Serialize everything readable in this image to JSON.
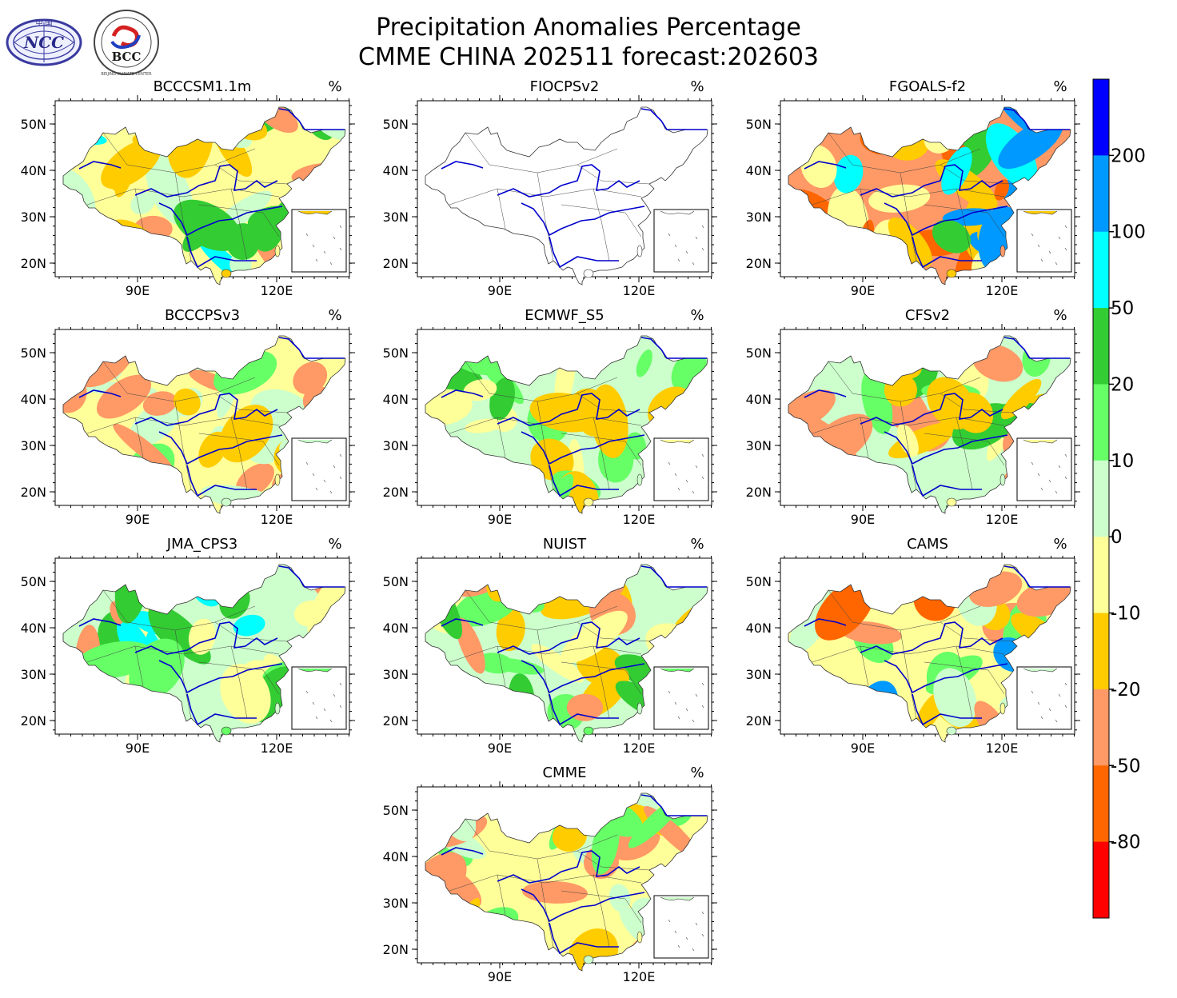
{
  "figure": {
    "title_line1": "Precipitation Anomalies Percentage",
    "title_line2": "CMME CHINA 202511 forecast:202603"
  },
  "logos": [
    {
      "name": "ncc-logo",
      "text": "NCC",
      "small_text": "中 国"
    },
    {
      "name": "bcc-logo",
      "text": "BCC",
      "small_text": "BEIJING CLIMATE CENTER"
    }
  ],
  "axes": {
    "lat_ticks": [
      "50N",
      "40N",
      "30N",
      "20N"
    ],
    "lon_ticks": [
      "90E",
      "120E"
    ]
  },
  "units": "%",
  "panels": [
    {
      "model": "BCCCSM1.1m",
      "dominant": "mixed",
      "palette": [
        "#ffff99",
        "#ffcc00",
        "#ff9966",
        "#ccffcc",
        "#33cc33",
        "#00ffff"
      ]
    },
    {
      "model": "FIOCPSv2",
      "dominant": "none",
      "palette": []
    },
    {
      "model": "FGOALS-f2",
      "dominant": "mixed",
      "palette": [
        "#ff9966",
        "#ffcc00",
        "#ffff99",
        "#33cc33",
        "#00ffff",
        "#0099ff",
        "#ff6600"
      ]
    },
    {
      "model": "BCCCPSv3",
      "dominant": "mixed",
      "palette": [
        "#ffff99",
        "#ccffcc",
        "#ffcc00",
        "#66ff66",
        "#ff9966"
      ]
    },
    {
      "model": "ECMWF_S5",
      "dominant": "wet",
      "palette": [
        "#ccffcc",
        "#ffff99",
        "#66ff66",
        "#33cc33",
        "#ffcc00"
      ]
    },
    {
      "model": "CFSv2",
      "dominant": "mixed",
      "palette": [
        "#ccffcc",
        "#ffff99",
        "#ffcc00",
        "#66ff66",
        "#ff9966",
        "#33cc33"
      ]
    },
    {
      "model": "JMA_CPS3",
      "dominant": "wet",
      "palette": [
        "#ccffcc",
        "#66ff66",
        "#ffff99",
        "#ff9966",
        "#33cc33",
        "#00ffff"
      ]
    },
    {
      "model": "NUIST",
      "dominant": "mixed",
      "palette": [
        "#ccffcc",
        "#66ff66",
        "#ffcc00",
        "#ff9966",
        "#ffff99",
        "#33cc33"
      ]
    },
    {
      "model": "CAMS",
      "dominant": "mixed",
      "palette": [
        "#ffff99",
        "#ccffcc",
        "#ff9966",
        "#ffcc00",
        "#66ff66",
        "#0099ff",
        "#ff6600"
      ]
    },
    {
      "model": "CMME",
      "dominant": "mixed",
      "palette": [
        "#ffff99",
        "#ccffcc",
        "#ffcc00",
        "#66ff66",
        "#ff9966"
      ]
    }
  ],
  "colorbar": {
    "labels": [
      "200",
      "100",
      "50",
      "20",
      "10",
      "0",
      "-10",
      "-20",
      "-50",
      "-80"
    ],
    "colors": [
      "#0000ff",
      "#0099ff",
      "#00ffff",
      "#33cc33",
      "#66ff66",
      "#ccffcc",
      "#ffff99",
      "#ffcc00",
      "#ff9966",
      "#ff6600",
      "#ff0000"
    ]
  }
}
